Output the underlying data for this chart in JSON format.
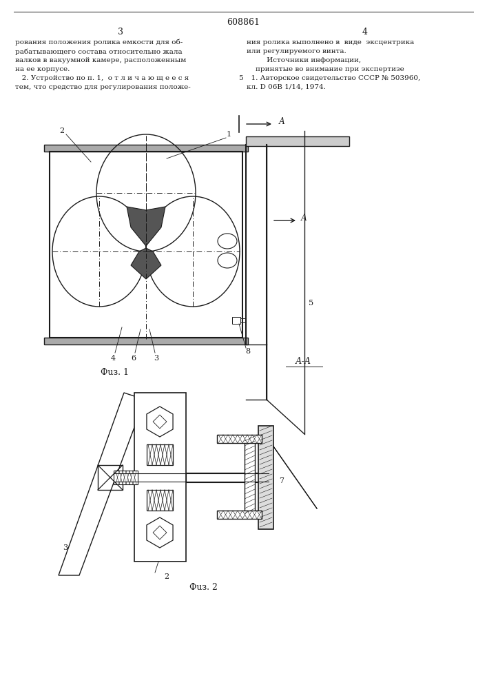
{
  "page_number": "608861",
  "col_left": "3",
  "col_right": "4",
  "text_left_col": [
    "рования положения ролика емкости для об-",
    "рабатывающего состава относительно жала",
    "валков в вакуумной камере, расположенным",
    "на ее корпусе.",
    "   2. Устройство по п. 1,  о т л и ч а ю щ е е с я",
    "тем, что средство для регулирования положе-"
  ],
  "text_right_col": [
    "ния ролика выполнено в  виде  эксцентрика",
    "или регулируемого винта.",
    "         Источники информации,",
    "    принятые во внимание при экспертизе",
    "  1. Авторское свидетельство СССР № 503960,",
    "кл. D 06В 1/14, 1974."
  ],
  "line_number_5": "5",
  "fig1_label": "Фuз. 1",
  "fig2_label": "Фuз. 2",
  "section_label": "А-А",
  "label_A": "А",
  "background": "#ffffff",
  "line_color": "#1a1a1a"
}
